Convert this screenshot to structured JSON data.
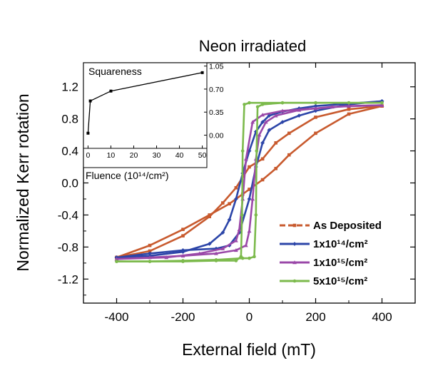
{
  "chart_data": [
    {
      "type": "line",
      "title": "Neon irradiated",
      "xlabel": "External field (mT)",
      "ylabel": "Normalized Kerr rotation",
      "xlim": [
        -500,
        500
      ],
      "ylim": [
        -1.5,
        1.5
      ],
      "x_ticks": [
        -400,
        -200,
        0,
        200,
        400
      ],
      "x_tick_labels": [
        "-400",
        "-200",
        "0",
        "200",
        "400"
      ],
      "y_ticks": [
        -1.2,
        -0.8,
        -0.4,
        0.0,
        0.4,
        0.8,
        1.2
      ],
      "y_tick_labels": [
        "-1.2",
        "-0.8",
        "-0.4",
        "0.0",
        "0.4",
        "0.8",
        "1.2"
      ],
      "legend_position": "bottom-right",
      "series": [
        {
          "name": "As Deposited",
          "color": "#c85a2e",
          "marker": "square",
          "branches": [
            {
              "x": [
                -400,
                -300,
                -200,
                -120,
                -60,
                -20,
                0,
                40,
                80,
                120,
                200,
                300,
                400
              ],
              "y": [
                -0.93,
                -0.78,
                -0.58,
                -0.4,
                -0.26,
                -0.14,
                -0.08,
                0.04,
                0.18,
                0.35,
                0.62,
                0.86,
                0.96
              ]
            },
            {
              "x": [
                400,
                300,
                200,
                120,
                80,
                40,
                0,
                -40,
                -80,
                -120,
                -200,
                -300,
                -400
              ],
              "y": [
                0.96,
                0.92,
                0.82,
                0.62,
                0.5,
                0.3,
                0.2,
                -0.06,
                -0.25,
                -0.42,
                -0.66,
                -0.85,
                -0.93
              ]
            }
          ]
        },
        {
          "name": "1x10¹⁴/cm²",
          "color": "#2c45a8",
          "marker": "diamond",
          "branches": [
            {
              "x": [
                -400,
                -300,
                -200,
                -100,
                -60,
                -30,
                0,
                20,
                40,
                60,
                100,
                150,
                200,
                300,
                400
              ],
              "y": [
                -0.93,
                -0.88,
                -0.84,
                -0.82,
                -0.78,
                -0.62,
                -0.2,
                0.2,
                0.5,
                0.66,
                0.76,
                0.84,
                0.9,
                0.98,
                1.02
              ]
            },
            {
              "x": [
                400,
                300,
                200,
                150,
                100,
                60,
                40,
                20,
                0,
                -20,
                -40,
                -60,
                -80,
                -120,
                -200,
                -300,
                -400
              ],
              "y": [
                1.02,
                0.99,
                0.96,
                0.93,
                0.89,
                0.84,
                0.76,
                0.64,
                0.4,
                0.12,
                -0.2,
                -0.46,
                -0.62,
                -0.76,
                -0.86,
                -0.91,
                -0.93
              ]
            }
          ]
        },
        {
          "name": "1x10¹⁵/cm²",
          "color": "#9a48a8",
          "marker": "triangle",
          "branches": [
            {
              "x": [
                -400,
                -300,
                -200,
                -100,
                -40,
                -10,
                0,
                10,
                20,
                30,
                50,
                80,
                150,
                250,
                400
              ],
              "y": [
                -0.95,
                -0.93,
                -0.91,
                -0.88,
                -0.84,
                -0.78,
                -0.6,
                -0.2,
                0.3,
                0.6,
                0.76,
                0.84,
                0.91,
                0.95,
                0.97
              ]
            },
            {
              "x": [
                400,
                300,
                200,
                100,
                40,
                10,
                -10,
                -20,
                -30,
                -40,
                -80,
                -150,
                -250,
                -400
              ],
              "y": [
                0.97,
                0.96,
                0.93,
                0.9,
                0.85,
                0.76,
                0.3,
                -0.2,
                -0.58,
                -0.72,
                -0.82,
                -0.88,
                -0.93,
                -0.95
              ]
            }
          ]
        },
        {
          "name": "5x10¹⁵/cm²",
          "color": "#7cba4c",
          "marker": "star",
          "branches": [
            {
              "x": [
                -400,
                -300,
                -200,
                -100,
                -20,
                0,
                15,
                20,
                22,
                25,
                40,
                100,
                200,
                300,
                400
              ],
              "y": [
                -0.98,
                -0.98,
                -0.97,
                -0.96,
                -0.94,
                -0.94,
                -0.92,
                -0.4,
                0.4,
                0.95,
                0.98,
                1.0,
                1.0,
                1.0,
                1.0
              ]
            },
            {
              "x": [
                400,
                300,
                200,
                100,
                0,
                -15,
                -20,
                -22,
                -25,
                -40,
                -100,
                -200,
                -300,
                -400
              ],
              "y": [
                1.0,
                1.0,
                1.0,
                1.0,
                1.0,
                0.98,
                0.4,
                -0.4,
                -0.92,
                -0.97,
                -0.97,
                -0.98,
                -0.98,
                -0.98
              ]
            }
          ]
        }
      ]
    },
    {
      "type": "line",
      "title": "Squareness",
      "xlabel": "Fluence (10¹⁴/cm²)",
      "ylabel": "",
      "xlim": [
        -2,
        52
      ],
      "ylim": [
        -0.2,
        1.1
      ],
      "x_ticks": [
        0,
        10,
        20,
        30,
        40,
        50
      ],
      "x_tick_labels": [
        "0",
        "10",
        "20",
        "30",
        "40",
        "50"
      ],
      "y_ticks": [
        0.0,
        0.35,
        0.7,
        1.05
      ],
      "y_tick_labels": [
        "0.00",
        "0.35",
        "0.70",
        "1.05"
      ],
      "series": [
        {
          "color": "#000000",
          "marker": "square",
          "x": [
            0,
            1,
            10,
            50
          ],
          "y": [
            0.03,
            0.52,
            0.67,
            0.95
          ]
        }
      ]
    }
  ]
}
